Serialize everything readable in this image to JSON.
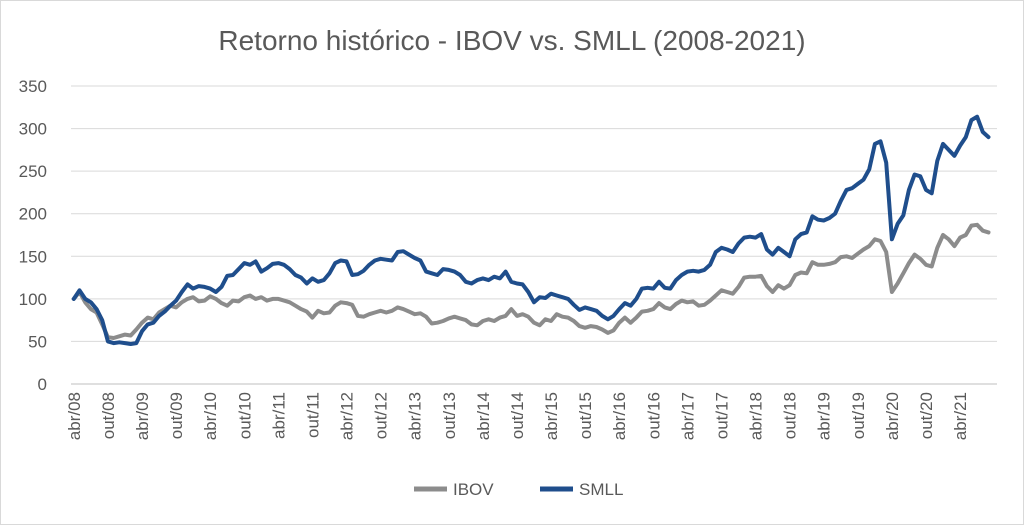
{
  "chart_data": {
    "type": "line",
    "title": "Retorno histórico - IBOV vs. SMLL (2008-2021)",
    "xlabel": "",
    "ylabel": "",
    "ylim": [
      0,
      350
    ],
    "yticks": [
      "0",
      "50",
      "100",
      "150",
      "200",
      "250",
      "300",
      "350"
    ],
    "x_months": 163,
    "xtick_labels": [
      "abr/08",
      "out/08",
      "abr/09",
      "out/09",
      "abr/10",
      "out/10",
      "abr/11",
      "out/11",
      "abr/12",
      "out/12",
      "abr/13",
      "out/13",
      "abr/14",
      "out/14",
      "abr/15",
      "out/15",
      "abr/16",
      "out/16",
      "abr/17",
      "out/17",
      "abr/18",
      "out/18",
      "abr/19",
      "out/19",
      "abr/20",
      "out/20",
      "abr/21"
    ],
    "legend_position": "bottom",
    "series": [
      {
        "name": "IBOV",
        "color": "#8c8c8c",
        "keypoints": [
          [
            0,
            100
          ],
          [
            1,
            108
          ],
          [
            2,
            96
          ],
          [
            3,
            88
          ],
          [
            4,
            84
          ],
          [
            5,
            70
          ],
          [
            6,
            55
          ],
          [
            7,
            54
          ],
          [
            8,
            56
          ],
          [
            9,
            58
          ],
          [
            10,
            57
          ],
          [
            11,
            64
          ],
          [
            12,
            72
          ],
          [
            13,
            78
          ],
          [
            14,
            76
          ],
          [
            15,
            84
          ],
          [
            16,
            88
          ],
          [
            17,
            92
          ],
          [
            18,
            90
          ],
          [
            19,
            96
          ],
          [
            20,
            100
          ],
          [
            21,
            102
          ],
          [
            22,
            97
          ],
          [
            23,
            98
          ],
          [
            24,
            103
          ],
          [
            25,
            100
          ],
          [
            26,
            95
          ],
          [
            27,
            92
          ],
          [
            28,
            98
          ],
          [
            29,
            97
          ],
          [
            30,
            102
          ],
          [
            31,
            104
          ],
          [
            32,
            100
          ],
          [
            33,
            102
          ],
          [
            34,
            98
          ],
          [
            35,
            100
          ],
          [
            36,
            100
          ],
          [
            37,
            98
          ],
          [
            38,
            96
          ],
          [
            39,
            92
          ],
          [
            40,
            88
          ],
          [
            41,
            85
          ],
          [
            42,
            78
          ],
          [
            43,
            86
          ],
          [
            44,
            83
          ],
          [
            45,
            84
          ],
          [
            46,
            92
          ],
          [
            47,
            96
          ],
          [
            48,
            95
          ],
          [
            49,
            93
          ],
          [
            50,
            80
          ],
          [
            51,
            79
          ],
          [
            52,
            82
          ],
          [
            53,
            84
          ],
          [
            54,
            86
          ],
          [
            55,
            84
          ],
          [
            56,
            86
          ],
          [
            57,
            90
          ],
          [
            58,
            88
          ],
          [
            59,
            85
          ],
          [
            60,
            82
          ],
          [
            61,
            83
          ],
          [
            62,
            79
          ],
          [
            63,
            71
          ],
          [
            64,
            72
          ],
          [
            65,
            74
          ],
          [
            66,
            77
          ],
          [
            67,
            79
          ],
          [
            68,
            77
          ],
          [
            69,
            75
          ],
          [
            70,
            70
          ],
          [
            71,
            69
          ],
          [
            72,
            74
          ],
          [
            73,
            76
          ],
          [
            74,
            74
          ],
          [
            75,
            78
          ],
          [
            76,
            80
          ],
          [
            77,
            88
          ],
          [
            78,
            80
          ],
          [
            79,
            82
          ],
          [
            80,
            79
          ],
          [
            81,
            72
          ],
          [
            82,
            69
          ],
          [
            83,
            76
          ],
          [
            84,
            74
          ],
          [
            85,
            82
          ],
          [
            86,
            79
          ],
          [
            87,
            78
          ],
          [
            88,
            74
          ],
          [
            89,
            68
          ],
          [
            90,
            66
          ],
          [
            91,
            68
          ],
          [
            92,
            67
          ],
          [
            93,
            64
          ],
          [
            94,
            60
          ],
          [
            95,
            63
          ],
          [
            96,
            72
          ],
          [
            97,
            78
          ],
          [
            98,
            72
          ],
          [
            99,
            78
          ],
          [
            100,
            85
          ],
          [
            101,
            86
          ],
          [
            102,
            88
          ],
          [
            103,
            95
          ],
          [
            104,
            90
          ],
          [
            105,
            88
          ],
          [
            106,
            94
          ],
          [
            107,
            98
          ],
          [
            108,
            96
          ],
          [
            109,
            97
          ],
          [
            110,
            92
          ],
          [
            111,
            93
          ],
          [
            112,
            98
          ],
          [
            113,
            104
          ],
          [
            114,
            110
          ],
          [
            115,
            108
          ],
          [
            116,
            106
          ],
          [
            117,
            114
          ],
          [
            118,
            125
          ],
          [
            119,
            126
          ],
          [
            120,
            126
          ],
          [
            121,
            127
          ],
          [
            122,
            115
          ],
          [
            123,
            108
          ],
          [
            124,
            116
          ],
          [
            125,
            112
          ],
          [
            126,
            116
          ],
          [
            127,
            128
          ],
          [
            128,
            131
          ],
          [
            129,
            130
          ],
          [
            130,
            143
          ],
          [
            131,
            140
          ],
          [
            132,
            140
          ],
          [
            133,
            141
          ],
          [
            134,
            143
          ],
          [
            135,
            149
          ],
          [
            136,
            150
          ],
          [
            137,
            148
          ],
          [
            138,
            153
          ],
          [
            139,
            158
          ],
          [
            140,
            162
          ],
          [
            141,
            170
          ],
          [
            142,
            168
          ],
          [
            143,
            155
          ],
          [
            144,
            108
          ],
          [
            145,
            118
          ],
          [
            146,
            130
          ],
          [
            147,
            142
          ],
          [
            148,
            152
          ],
          [
            149,
            147
          ],
          [
            150,
            140
          ],
          [
            151,
            138
          ],
          [
            152,
            160
          ],
          [
            153,
            175
          ],
          [
            154,
            170
          ],
          [
            155,
            162
          ],
          [
            156,
            172
          ],
          [
            157,
            175
          ],
          [
            158,
            186
          ],
          [
            159,
            187
          ],
          [
            160,
            180
          ],
          [
            161,
            178
          ]
        ]
      },
      {
        "name": "SMLL",
        "color": "#1f4e8c",
        "keypoints": [
          [
            0,
            100
          ],
          [
            1,
            110
          ],
          [
            2,
            100
          ],
          [
            3,
            96
          ],
          [
            4,
            88
          ],
          [
            5,
            75
          ],
          [
            6,
            50
          ],
          [
            7,
            48
          ],
          [
            8,
            49
          ],
          [
            9,
            48
          ],
          [
            10,
            47
          ],
          [
            11,
            48
          ],
          [
            12,
            62
          ],
          [
            13,
            70
          ],
          [
            14,
            72
          ],
          [
            15,
            80
          ],
          [
            16,
            85
          ],
          [
            17,
            92
          ],
          [
            18,
            98
          ],
          [
            19,
            108
          ],
          [
            20,
            117
          ],
          [
            21,
            112
          ],
          [
            22,
            115
          ],
          [
            23,
            114
          ],
          [
            24,
            112
          ],
          [
            25,
            108
          ],
          [
            26,
            114
          ],
          [
            27,
            127
          ],
          [
            28,
            128
          ],
          [
            29,
            135
          ],
          [
            30,
            142
          ],
          [
            31,
            140
          ],
          [
            32,
            144
          ],
          [
            33,
            132
          ],
          [
            34,
            136
          ],
          [
            35,
            141
          ],
          [
            36,
            142
          ],
          [
            37,
            140
          ],
          [
            38,
            135
          ],
          [
            39,
            128
          ],
          [
            40,
            125
          ],
          [
            41,
            118
          ],
          [
            42,
            124
          ],
          [
            43,
            120
          ],
          [
            44,
            122
          ],
          [
            45,
            130
          ],
          [
            46,
            142
          ],
          [
            47,
            145
          ],
          [
            48,
            144
          ],
          [
            49,
            128
          ],
          [
            50,
            129
          ],
          [
            51,
            133
          ],
          [
            52,
            140
          ],
          [
            53,
            145
          ],
          [
            54,
            147
          ],
          [
            55,
            146
          ],
          [
            56,
            145
          ],
          [
            57,
            155
          ],
          [
            58,
            156
          ],
          [
            59,
            152
          ],
          [
            60,
            148
          ],
          [
            61,
            145
          ],
          [
            62,
            132
          ],
          [
            63,
            130
          ],
          [
            64,
            128
          ],
          [
            65,
            135
          ],
          [
            66,
            134
          ],
          [
            67,
            132
          ],
          [
            68,
            128
          ],
          [
            69,
            120
          ],
          [
            70,
            118
          ],
          [
            71,
            122
          ],
          [
            72,
            124
          ],
          [
            73,
            122
          ],
          [
            74,
            126
          ],
          [
            75,
            124
          ],
          [
            76,
            132
          ],
          [
            77,
            120
          ],
          [
            78,
            118
          ],
          [
            79,
            117
          ],
          [
            80,
            108
          ],
          [
            81,
            96
          ],
          [
            82,
            102
          ],
          [
            83,
            101
          ],
          [
            84,
            106
          ],
          [
            85,
            104
          ],
          [
            86,
            102
          ],
          [
            87,
            100
          ],
          [
            88,
            93
          ],
          [
            89,
            87
          ],
          [
            90,
            90
          ],
          [
            91,
            88
          ],
          [
            92,
            86
          ],
          [
            93,
            80
          ],
          [
            94,
            76
          ],
          [
            95,
            80
          ],
          [
            96,
            88
          ],
          [
            97,
            95
          ],
          [
            98,
            92
          ],
          [
            99,
            100
          ],
          [
            100,
            112
          ],
          [
            101,
            113
          ],
          [
            102,
            112
          ],
          [
            103,
            120
          ],
          [
            104,
            113
          ],
          [
            105,
            112
          ],
          [
            106,
            122
          ],
          [
            107,
            128
          ],
          [
            108,
            132
          ],
          [
            109,
            133
          ],
          [
            110,
            132
          ],
          [
            111,
            134
          ],
          [
            112,
            140
          ],
          [
            113,
            155
          ],
          [
            114,
            160
          ],
          [
            115,
            158
          ],
          [
            116,
            155
          ],
          [
            117,
            165
          ],
          [
            118,
            172
          ],
          [
            119,
            173
          ],
          [
            120,
            172
          ],
          [
            121,
            176
          ],
          [
            122,
            158
          ],
          [
            123,
            152
          ],
          [
            124,
            160
          ],
          [
            125,
            155
          ],
          [
            126,
            150
          ],
          [
            127,
            170
          ],
          [
            128,
            176
          ],
          [
            129,
            178
          ],
          [
            130,
            197
          ],
          [
            131,
            193
          ],
          [
            132,
            192
          ],
          [
            133,
            195
          ],
          [
            134,
            200
          ],
          [
            135,
            215
          ],
          [
            136,
            228
          ],
          [
            137,
            230
          ],
          [
            138,
            235
          ],
          [
            139,
            240
          ],
          [
            140,
            252
          ],
          [
            141,
            282
          ],
          [
            142,
            285
          ],
          [
            143,
            260
          ],
          [
            144,
            170
          ],
          [
            145,
            188
          ],
          [
            146,
            198
          ],
          [
            147,
            228
          ],
          [
            148,
            246
          ],
          [
            149,
            244
          ],
          [
            150,
            228
          ],
          [
            151,
            224
          ],
          [
            152,
            262
          ],
          [
            153,
            282
          ],
          [
            154,
            275
          ],
          [
            155,
            268
          ],
          [
            156,
            280
          ],
          [
            157,
            290
          ],
          [
            158,
            310
          ],
          [
            159,
            314
          ],
          [
            160,
            296
          ],
          [
            161,
            290
          ]
        ]
      }
    ]
  }
}
